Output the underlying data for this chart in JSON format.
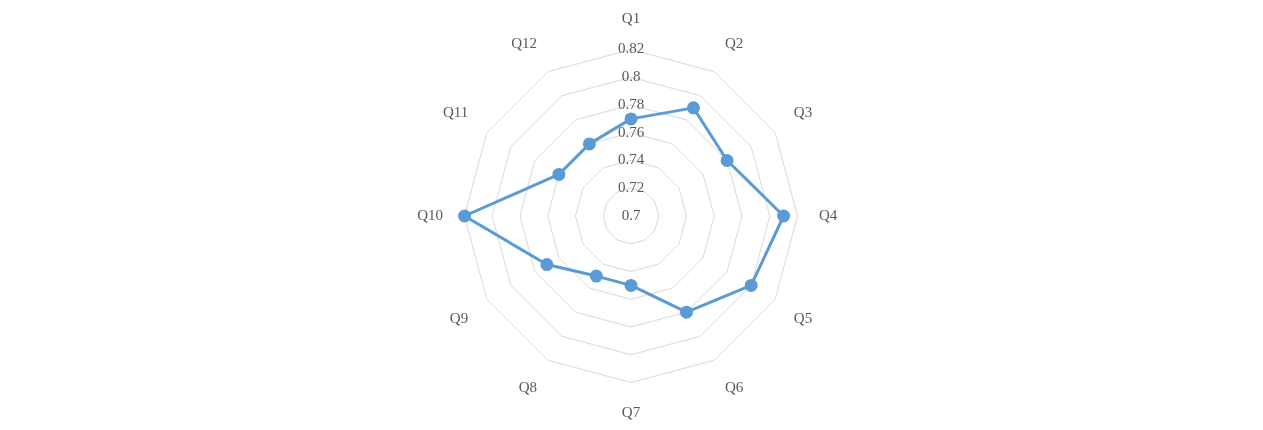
{
  "chart_data": {
    "type": "radar",
    "categories": [
      "Q1",
      "Q2",
      "Q3",
      "Q4",
      "Q5",
      "Q6",
      "Q7",
      "Q8",
      "Q9",
      "Q10",
      "Q11",
      "Q12"
    ],
    "series": [
      {
        "color": "#5b9bd5",
        "values": [
          0.77,
          0.79,
          0.78,
          0.81,
          0.8,
          0.78,
          0.75,
          0.75,
          0.77,
          0.82,
          0.76,
          0.76
        ]
      }
    ],
    "ylim": [
      0.7,
      0.82
    ],
    "yticks": [
      0.7,
      0.72,
      0.74,
      0.76,
      0.78,
      0.8,
      0.82
    ],
    "grid": true,
    "legend": false,
    "marker": "circle",
    "line_style": "solid"
  }
}
